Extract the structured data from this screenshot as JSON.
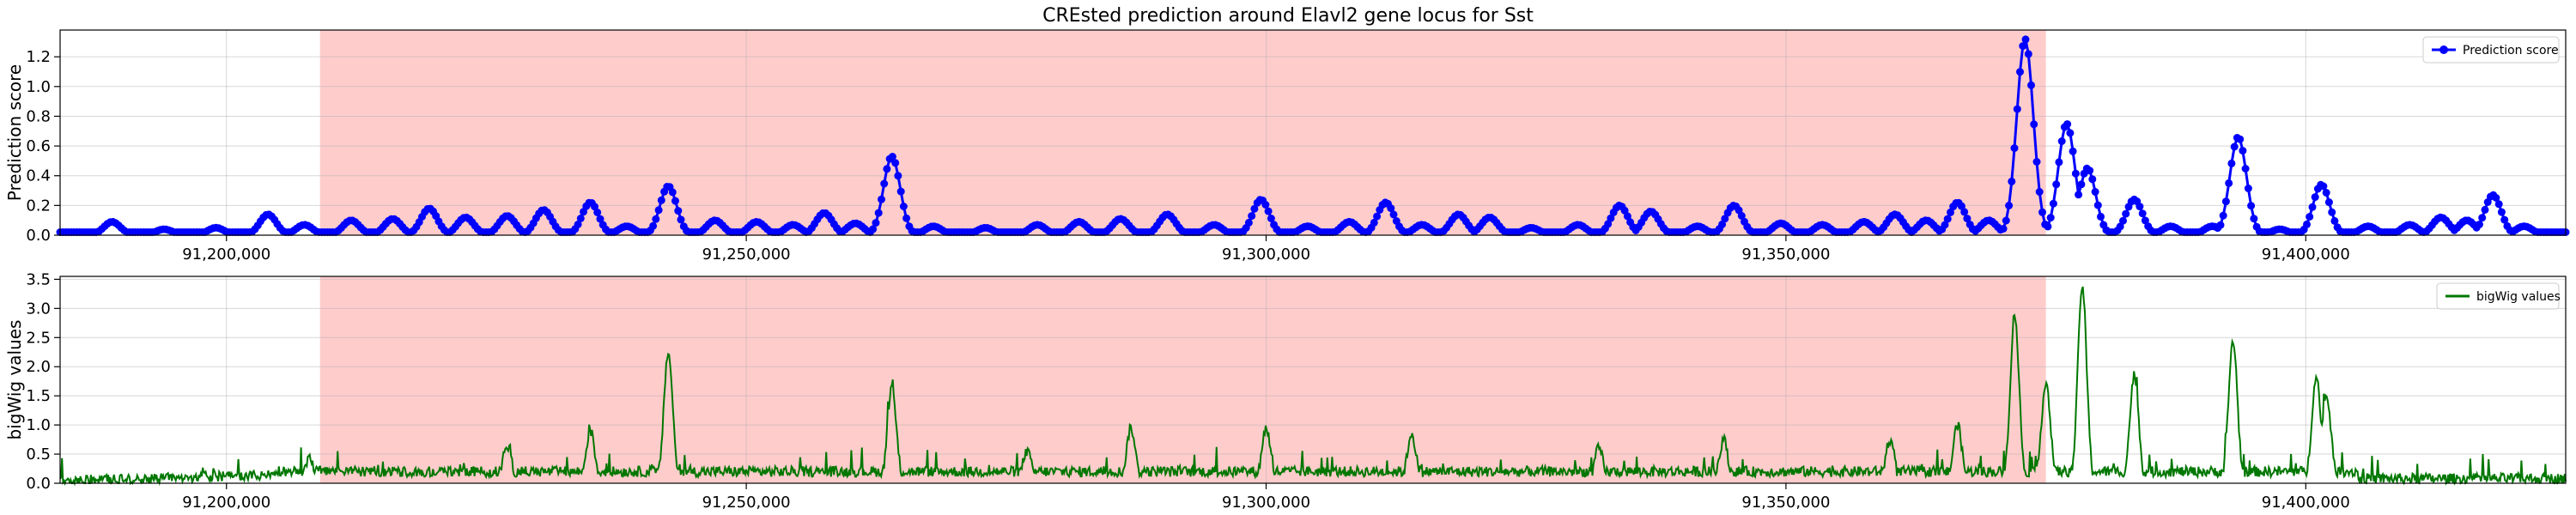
{
  "chart_data": [
    {
      "type": "line",
      "title": "CREsted prediction around Elavl2 gene locus for Sst",
      "xlabel": "",
      "ylabel": "Prediction score",
      "xlim": [
        91184000,
        91425000
      ],
      "ylim": [
        0,
        1.38
      ],
      "x_ticks": [
        91200000,
        91250000,
        91300000,
        91350000,
        91400000
      ],
      "x_tick_labels": [
        "91,200,000",
        "91,250,000",
        "91,300,000",
        "91,350,000",
        "91,400,000"
      ],
      "y_ticks": [
        0.0,
        0.2,
        0.4,
        0.6,
        0.8,
        1.0,
        1.2
      ],
      "y_tick_labels": [
        "0.0",
        "0.2",
        "0.4",
        "0.6",
        "0.8",
        "1.0",
        "1.2"
      ],
      "highlight_region": [
        91209000,
        91375000
      ],
      "highlight_color": "#ff0000",
      "grid": true,
      "legend_position": "top-right",
      "marker": "circle",
      "series": [
        {
          "name": "Prediction score",
          "color": "#0000ff",
          "baseline": 0.02,
          "peaks": [
            {
              "x": 91189000,
              "y": 0.09
            },
            {
              "x": 91194000,
              "y": 0.04
            },
            {
              "x": 91199000,
              "y": 0.05
            },
            {
              "x": 91204000,
              "y": 0.14
            },
            {
              "x": 91207500,
              "y": 0.07
            },
            {
              "x": 91212000,
              "y": 0.1
            },
            {
              "x": 91216000,
              "y": 0.11
            },
            {
              "x": 91219500,
              "y": 0.18
            },
            {
              "x": 91223000,
              "y": 0.12
            },
            {
              "x": 91227000,
              "y": 0.13
            },
            {
              "x": 91230500,
              "y": 0.17
            },
            {
              "x": 91235000,
              "y": 0.22
            },
            {
              "x": 91238500,
              "y": 0.06
            },
            {
              "x": 91242500,
              "y": 0.33
            },
            {
              "x": 91247000,
              "y": 0.1
            },
            {
              "x": 91251000,
              "y": 0.09
            },
            {
              "x": 91254500,
              "y": 0.07
            },
            {
              "x": 91257500,
              "y": 0.15
            },
            {
              "x": 91260500,
              "y": 0.08
            },
            {
              "x": 91264000,
              "y": 0.53
            },
            {
              "x": 91268000,
              "y": 0.06
            },
            {
              "x": 91273000,
              "y": 0.05
            },
            {
              "x": 91278000,
              "y": 0.07
            },
            {
              "x": 91282000,
              "y": 0.09
            },
            {
              "x": 91286000,
              "y": 0.11
            },
            {
              "x": 91290500,
              "y": 0.14
            },
            {
              "x": 91295000,
              "y": 0.07
            },
            {
              "x": 91299500,
              "y": 0.24
            },
            {
              "x": 91304000,
              "y": 0.06
            },
            {
              "x": 91308000,
              "y": 0.09
            },
            {
              "x": 91311500,
              "y": 0.22
            },
            {
              "x": 91315000,
              "y": 0.07
            },
            {
              "x": 91318500,
              "y": 0.14
            },
            {
              "x": 91321500,
              "y": 0.12
            },
            {
              "x": 91325500,
              "y": 0.05
            },
            {
              "x": 91330000,
              "y": 0.07
            },
            {
              "x": 91334000,
              "y": 0.2
            },
            {
              "x": 91337000,
              "y": 0.16
            },
            {
              "x": 91341500,
              "y": 0.06
            },
            {
              "x": 91345000,
              "y": 0.2
            },
            {
              "x": 91349500,
              "y": 0.08
            },
            {
              "x": 91353500,
              "y": 0.07
            },
            {
              "x": 91357500,
              "y": 0.09
            },
            {
              "x": 91360500,
              "y": 0.14
            },
            {
              "x": 91363500,
              "y": 0.1
            },
            {
              "x": 91366500,
              "y": 0.22
            },
            {
              "x": 91369500,
              "y": 0.1
            },
            {
              "x": 91373000,
              "y": 1.32
            },
            {
              "x": 91377000,
              "y": 0.75
            },
            {
              "x": 91379000,
              "y": 0.45
            },
            {
              "x": 91383500,
              "y": 0.24
            },
            {
              "x": 91387000,
              "y": 0.06
            },
            {
              "x": 91391000,
              "y": 0.06
            },
            {
              "x": 91393500,
              "y": 0.66
            },
            {
              "x": 91397500,
              "y": 0.04
            },
            {
              "x": 91401500,
              "y": 0.34
            },
            {
              "x": 91406000,
              "y": 0.06
            },
            {
              "x": 91410000,
              "y": 0.07
            },
            {
              "x": 91413000,
              "y": 0.12
            },
            {
              "x": 91415500,
              "y": 0.1
            },
            {
              "x": 91418000,
              "y": 0.27
            },
            {
              "x": 91421000,
              "y": 0.06
            },
            {
              "x": 91424000,
              "y": 0.02
            }
          ]
        }
      ]
    },
    {
      "type": "line",
      "title": "",
      "xlabel": "",
      "ylabel": "bigWig values",
      "xlim": [
        91184000,
        91425000
      ],
      "ylim": [
        0,
        3.55
      ],
      "x_ticks": [
        91200000,
        91250000,
        91300000,
        91350000,
        91400000
      ],
      "x_tick_labels": [
        "91,200,000",
        "91,250,000",
        "91,300,000",
        "91,350,000",
        "91,400,000"
      ],
      "y_ticks": [
        0.0,
        0.5,
        1.0,
        1.5,
        2.0,
        2.5,
        3.0,
        3.5
      ],
      "y_tick_labels": [
        "0.0",
        "0.5",
        "1.0",
        "1.5",
        "2.0",
        "2.5",
        "3.0",
        "3.5"
      ],
      "highlight_region": [
        91209000,
        91375000
      ],
      "highlight_color": "#ff0000",
      "grid": true,
      "legend_position": "top-right",
      "series": [
        {
          "name": "bigWig values",
          "color": "#007700",
          "baseline": 0.2,
          "peaks": [
            {
              "x": 91208000,
              "y": 0.45
            },
            {
              "x": 91227000,
              "y": 0.65
            },
            {
              "x": 91235000,
              "y": 0.9
            },
            {
              "x": 91242500,
              "y": 2.25
            },
            {
              "x": 91264000,
              "y": 1.65
            },
            {
              "x": 91277000,
              "y": 0.55
            },
            {
              "x": 91287000,
              "y": 0.95
            },
            {
              "x": 91300000,
              "y": 0.95
            },
            {
              "x": 91314000,
              "y": 0.85
            },
            {
              "x": 91332000,
              "y": 0.6
            },
            {
              "x": 91344000,
              "y": 0.75
            },
            {
              "x": 91360000,
              "y": 0.75
            },
            {
              "x": 91366500,
              "y": 1.0
            },
            {
              "x": 91372000,
              "y": 2.9
            },
            {
              "x": 91375000,
              "y": 1.75
            },
            {
              "x": 91378500,
              "y": 3.4
            },
            {
              "x": 91383500,
              "y": 1.85
            },
            {
              "x": 91393000,
              "y": 2.45
            },
            {
              "x": 91401000,
              "y": 1.85
            },
            {
              "x": 91402000,
              "y": 1.5
            },
            {
              "x": 91418000,
              "y": 0.25
            }
          ]
        }
      ]
    }
  ]
}
